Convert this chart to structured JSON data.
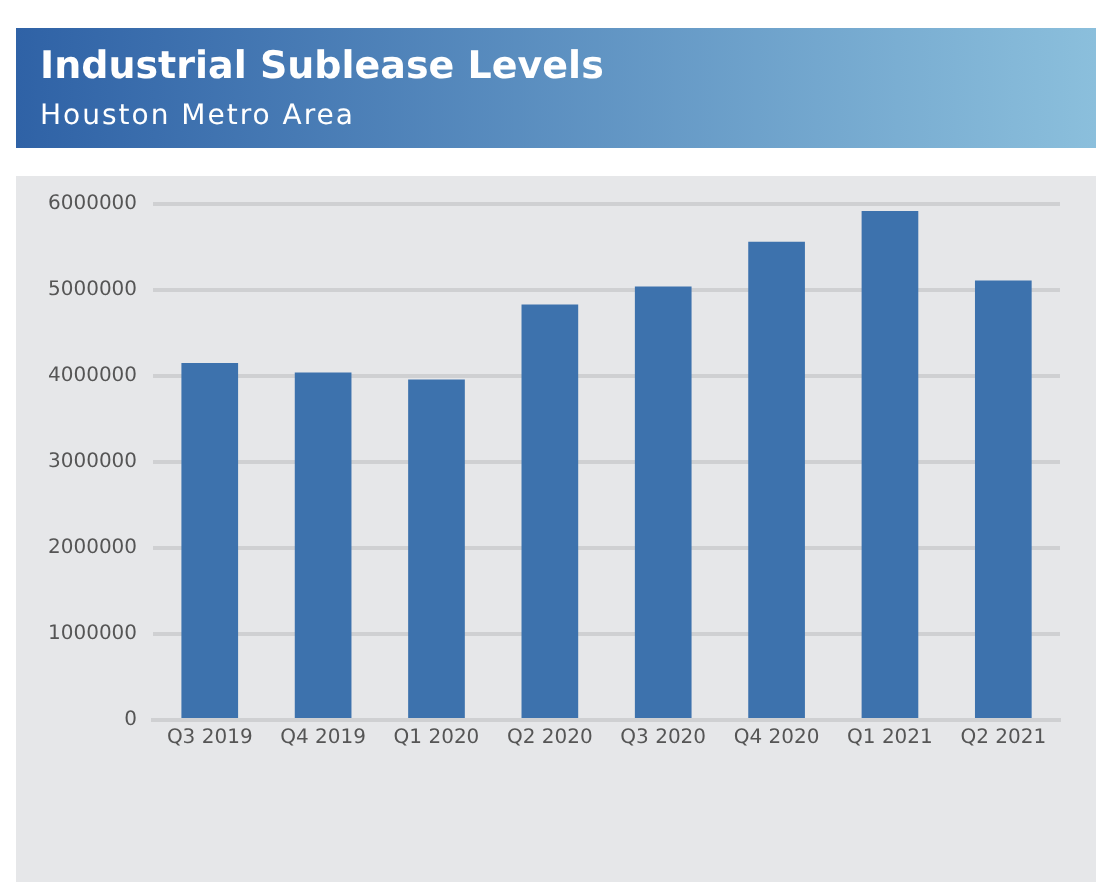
{
  "chart_data": {
    "type": "bar",
    "title": "Industrial Sublease Levels",
    "subtitle": "Houston Metro Area",
    "categories": [
      "Q3 2019",
      "Q4 2019",
      "Q1 2020",
      "Q2 2020",
      "Q3 2020",
      "Q4 2020",
      "Q1 2021",
      "Q2 2021"
    ],
    "values": [
      4150000,
      4040000,
      3960000,
      4830000,
      5040000,
      5560000,
      5920000,
      5110000
    ],
    "color": "#3d72ad",
    "ylim": [
      0,
      6000000
    ],
    "yticks": [
      0,
      1000000,
      2000000,
      3000000,
      4000000,
      5000000,
      6000000
    ],
    "grid": "y",
    "legend": false
  }
}
